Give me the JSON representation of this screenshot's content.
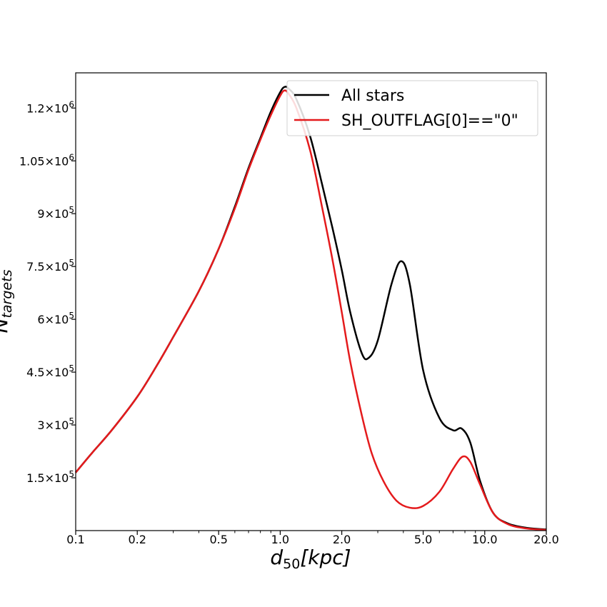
{
  "chart_data": {
    "type": "line",
    "xscale": "log",
    "xlim": [
      0.1,
      20.0
    ],
    "ylim": [
      0,
      1300000
    ],
    "xlabel": "d50[kpc]",
    "ylabel": "Ntargets",
    "x_ticks": [
      0.1,
      0.2,
      0.5,
      1.0,
      2.0,
      5.0,
      10.0,
      20.0
    ],
    "x_tick_labels": [
      "0.1",
      "0.2",
      "0.5",
      "1.0",
      "2.0",
      "5.0",
      "10.0",
      "20.0"
    ],
    "y_ticks": [
      150000,
      300000,
      450000,
      600000,
      750000,
      900000,
      1050000,
      1200000
    ],
    "y_tick_labels": [
      {
        "mant": "1.5",
        "exp": "5"
      },
      {
        "mant": "3",
        "exp": "5"
      },
      {
        "mant": "4.5",
        "exp": "5"
      },
      {
        "mant": "6",
        "exp": "5"
      },
      {
        "mant": "7.5",
        "exp": "5"
      },
      {
        "mant": "9",
        "exp": "5"
      },
      {
        "mant": "1.05",
        "exp": "6"
      },
      {
        "mant": "1.2",
        "exp": "6"
      }
    ],
    "grid": false,
    "legend_position": "top-right",
    "series": [
      {
        "name": "All stars",
        "color": "#000000",
        "x": [
          0.1,
          0.12,
          0.15,
          0.2,
          0.25,
          0.3,
          0.4,
          0.5,
          0.6,
          0.7,
          0.8,
          0.9,
          1.0,
          1.05,
          1.1,
          1.2,
          1.4,
          1.6,
          1.8,
          2.0,
          2.2,
          2.5,
          2.7,
          3.0,
          3.5,
          3.9,
          4.3,
          5.0,
          6.0,
          7.0,
          7.7,
          8.5,
          9.5,
          11.0,
          13.0,
          16.0,
          20.0
        ],
        "y": [
          165000,
          220000,
          285000,
          380000,
          470000,
          550000,
          680000,
          800000,
          920000,
          1030000,
          1115000,
          1190000,
          1245000,
          1260000,
          1255000,
          1225000,
          1120000,
          985000,
          860000,
          740000,
          620000,
          505000,
          490000,
          540000,
          700000,
          765000,
          700000,
          455000,
          320000,
          285000,
          290000,
          250000,
          140000,
          50000,
          20000,
          8000,
          3000
        ]
      },
      {
        "name": "SH_OUTFLAG[0]==\"0\"",
        "color": "#e41a1c",
        "x": [
          0.1,
          0.12,
          0.15,
          0.2,
          0.25,
          0.3,
          0.4,
          0.5,
          0.6,
          0.7,
          0.8,
          0.9,
          1.0,
          1.05,
          1.1,
          1.2,
          1.4,
          1.6,
          1.8,
          2.0,
          2.2,
          2.5,
          2.8,
          3.2,
          3.7,
          4.3,
          5.0,
          6.0,
          7.0,
          7.8,
          8.5,
          9.5,
          11.0,
          13.0,
          16.0,
          20.0
        ],
        "y": [
          165000,
          220000,
          285000,
          380000,
          470000,
          550000,
          680000,
          800000,
          915000,
          1025000,
          1110000,
          1180000,
          1235000,
          1250000,
          1240000,
          1200000,
          1080000,
          920000,
          770000,
          620000,
          480000,
          330000,
          220000,
          140000,
          85000,
          65000,
          70000,
          110000,
          175000,
          210000,
          195000,
          130000,
          50000,
          18000,
          6000,
          2000
        ]
      }
    ]
  }
}
